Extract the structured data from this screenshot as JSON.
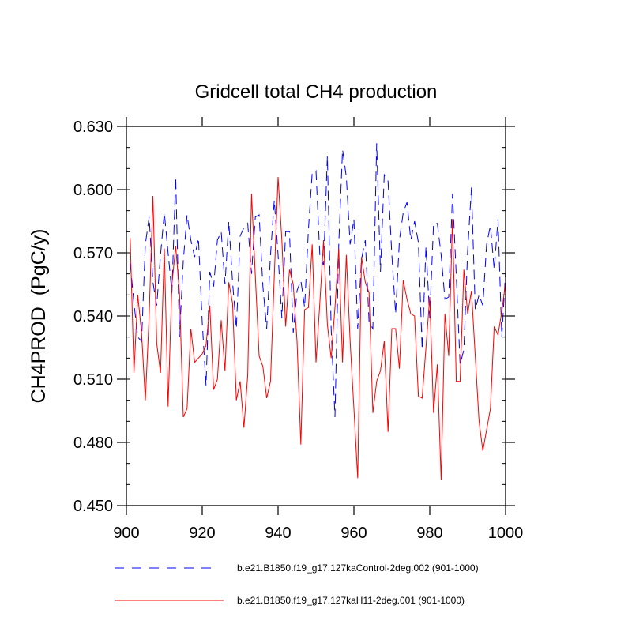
{
  "chart_data": {
    "type": "line",
    "title": "Gridcell total CH4 production",
    "xlabel": "",
    "ylabel": "CH4PROD  (PgC/y)",
    "xlim": [
      900,
      1000
    ],
    "ylim": [
      0.45,
      0.63
    ],
    "x_ticks": [
      900,
      920,
      940,
      960,
      980,
      1000
    ],
    "x_tick_labels": [
      "900",
      "920",
      "940",
      "960",
      "980",
      "1000"
    ],
    "y_ticks": [
      0.45,
      0.48,
      0.51,
      0.54,
      0.57,
      0.6,
      0.63
    ],
    "y_tick_labels": [
      "0.450",
      "0.480",
      "0.510",
      "0.540",
      "0.570",
      "0.600",
      "0.630"
    ],
    "grid": false,
    "legend_position": "bottom",
    "x_start": 901,
    "series": [
      {
        "name": "b.e21.B1850.f19_g17.127kaControl-2deg.002 (901-1000)",
        "color": "#0000ff",
        "style": "dashed",
        "values": [
          0.565,
          0.546,
          0.53,
          0.528,
          0.574,
          0.587,
          0.556,
          0.545,
          0.569,
          0.589,
          0.57,
          0.551,
          0.606,
          0.53,
          0.566,
          0.588,
          0.576,
          0.568,
          0.577,
          0.537,
          0.507,
          0.561,
          0.554,
          0.576,
          0.58,
          0.555,
          0.585,
          0.556,
          0.534,
          0.578,
          0.582,
          0.584,
          0.56,
          0.587,
          0.588,
          0.554,
          0.534,
          0.569,
          0.595,
          0.569,
          0.539,
          0.58,
          0.58,
          0.532,
          0.552,
          0.557,
          0.544,
          0.581,
          0.608,
          0.609,
          0.569,
          0.564,
          0.616,
          0.534,
          0.492,
          0.574,
          0.619,
          0.606,
          0.574,
          0.586,
          0.534,
          0.567,
          0.576,
          0.537,
          0.534,
          0.622,
          0.561,
          0.607,
          0.604,
          0.569,
          0.541,
          0.576,
          0.589,
          0.594,
          0.576,
          0.585,
          0.575,
          0.524,
          0.573,
          0.539,
          0.584,
          0.584,
          0.569,
          0.548,
          0.549,
          0.598,
          0.559,
          0.517,
          0.524,
          0.571,
          0.601,
          0.543,
          0.55,
          0.545,
          0.574,
          0.583,
          0.562,
          0.586,
          0.53,
          0.561
        ]
      },
      {
        "name": "b.e21.B1850.f19_g17.127kaH11-2deg.001 (901-1000)",
        "color": "#ff0000",
        "style": "solid",
        "values": [
          0.577,
          0.513,
          0.55,
          0.532,
          0.5,
          0.54,
          0.597,
          0.527,
          0.513,
          0.572,
          0.497,
          0.555,
          0.573,
          0.551,
          0.492,
          0.496,
          0.534,
          0.518,
          0.52,
          0.522,
          0.526,
          0.545,
          0.505,
          0.51,
          0.538,
          0.514,
          0.556,
          0.546,
          0.5,
          0.509,
          0.487,
          0.512,
          0.598,
          0.559,
          0.521,
          0.516,
          0.501,
          0.509,
          0.559,
          0.606,
          0.576,
          0.535,
          0.562,
          0.555,
          0.528,
          0.479,
          0.543,
          0.544,
          0.574,
          0.518,
          0.546,
          0.576,
          0.536,
          0.52,
          0.544,
          0.572,
          0.518,
          0.569,
          0.528,
          0.496,
          0.463,
          0.568,
          0.556,
          0.551,
          0.494,
          0.509,
          0.514,
          0.528,
          0.485,
          0.534,
          0.534,
          0.515,
          0.557,
          0.548,
          0.541,
          0.54,
          0.502,
          0.501,
          0.525,
          0.549,
          0.494,
          0.517,
          0.462,
          0.541,
          0.521,
          0.586,
          0.509,
          0.509,
          0.562,
          0.541,
          0.552,
          0.521,
          0.49,
          0.476,
          0.486,
          0.496,
          0.535,
          0.531,
          0.542,
          0.556
        ]
      }
    ]
  }
}
